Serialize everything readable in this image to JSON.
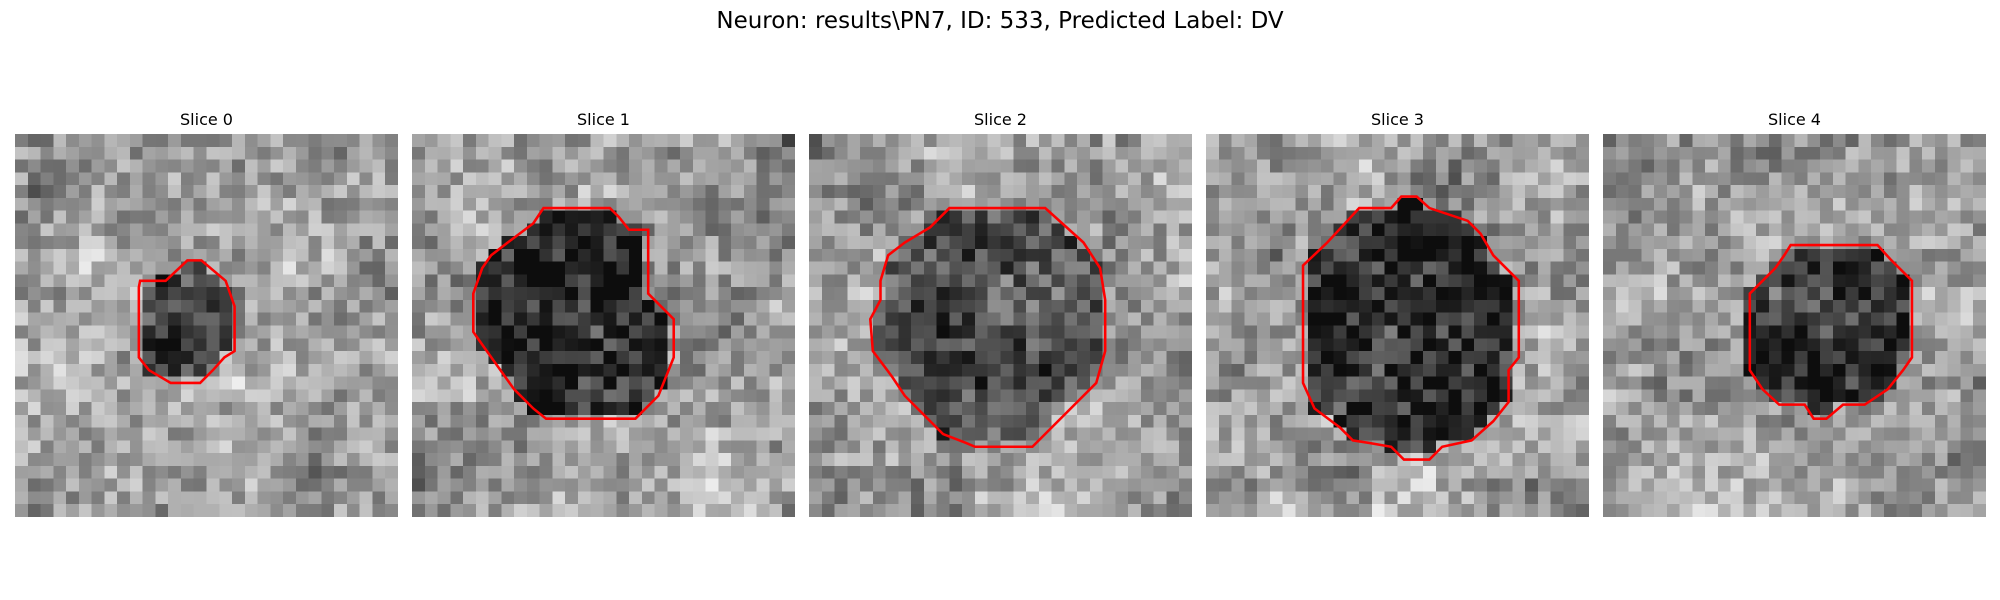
{
  "figure": {
    "title": "Neuron: results\\PN7, ID: 533, Predicted Label: DV"
  },
  "colors": {
    "contour": "#ff0000",
    "background": "#ffffff"
  },
  "panels": [
    {
      "title": "Slice 0",
      "seed": 11,
      "darkness": 0.45
    },
    {
      "title": "Slice 1",
      "seed": 23,
      "darkness": 0.6
    },
    {
      "title": "Slice 2",
      "seed": 37,
      "darkness": 0.4
    },
    {
      "title": "Slice 3",
      "seed": 41,
      "darkness": 0.6
    },
    {
      "title": "Slice 4",
      "seed": 53,
      "darkness": 0.5
    }
  ]
}
